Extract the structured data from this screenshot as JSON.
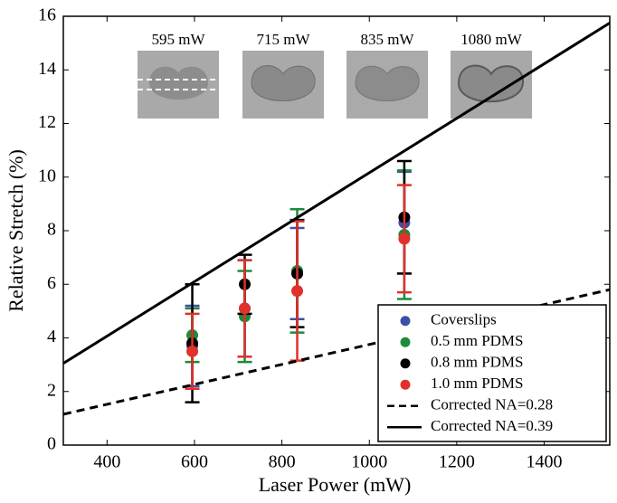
{
  "chart_data": {
    "type": "scatter",
    "xlabel": "Laser Power (mW)",
    "ylabel": "Relative Stretch (%)",
    "xlim": [
      300,
      1550
    ],
    "ylim": [
      0,
      16
    ],
    "xticks": [
      400,
      600,
      800,
      1000,
      1200,
      1400
    ],
    "yticks": [
      0,
      2,
      4,
      6,
      8,
      10,
      12,
      14,
      16
    ],
    "image_labels": [
      "595 mW",
      "715 mW",
      "835 mW",
      "1080 mW"
    ],
    "legend": "lower right",
    "series": [
      {
        "name": "Coverslips",
        "color": "#3c50a8",
        "x": [
          595,
          715,
          835,
          1080
        ],
        "values": [
          3.7,
          5.1,
          6.4,
          8.3
        ],
        "errors": [
          1.5,
          1.8,
          1.7,
          1.9
        ]
      },
      {
        "name": "0.5 mm PDMS",
        "color": "#1e8a3c",
        "x": [
          595,
          715,
          835,
          1080
        ],
        "values": [
          4.1,
          4.8,
          6.5,
          7.85
        ],
        "errors": [
          1.0,
          1.7,
          2.3,
          2.4
        ]
      },
      {
        "name": "0.8 mm PDMS",
        "color": "#000000",
        "x": [
          595,
          715,
          835,
          1080
        ],
        "values": [
          3.8,
          6.0,
          6.4,
          8.5
        ],
        "errors": [
          2.2,
          1.1,
          2.0,
          2.1
        ]
      },
      {
        "name": "1.0 mm PDMS",
        "color": "#e0312b",
        "x": [
          595,
          715,
          835,
          1080
        ],
        "values": [
          3.5,
          5.1,
          5.75,
          7.7
        ],
        "errors": [
          1.4,
          1.8,
          2.6,
          2.0
        ]
      },
      {
        "name": "Corrected NA=0.28",
        "type": "line",
        "style": "dashed",
        "color": "#000000",
        "x": [
          300,
          1550
        ],
        "values": [
          1.15,
          5.8
        ]
      },
      {
        "name": "Corrected NA=0.39",
        "type": "line",
        "style": "solid",
        "color": "#000000",
        "x": [
          300,
          1550
        ],
        "values": [
          3.05,
          15.75
        ]
      }
    ]
  }
}
